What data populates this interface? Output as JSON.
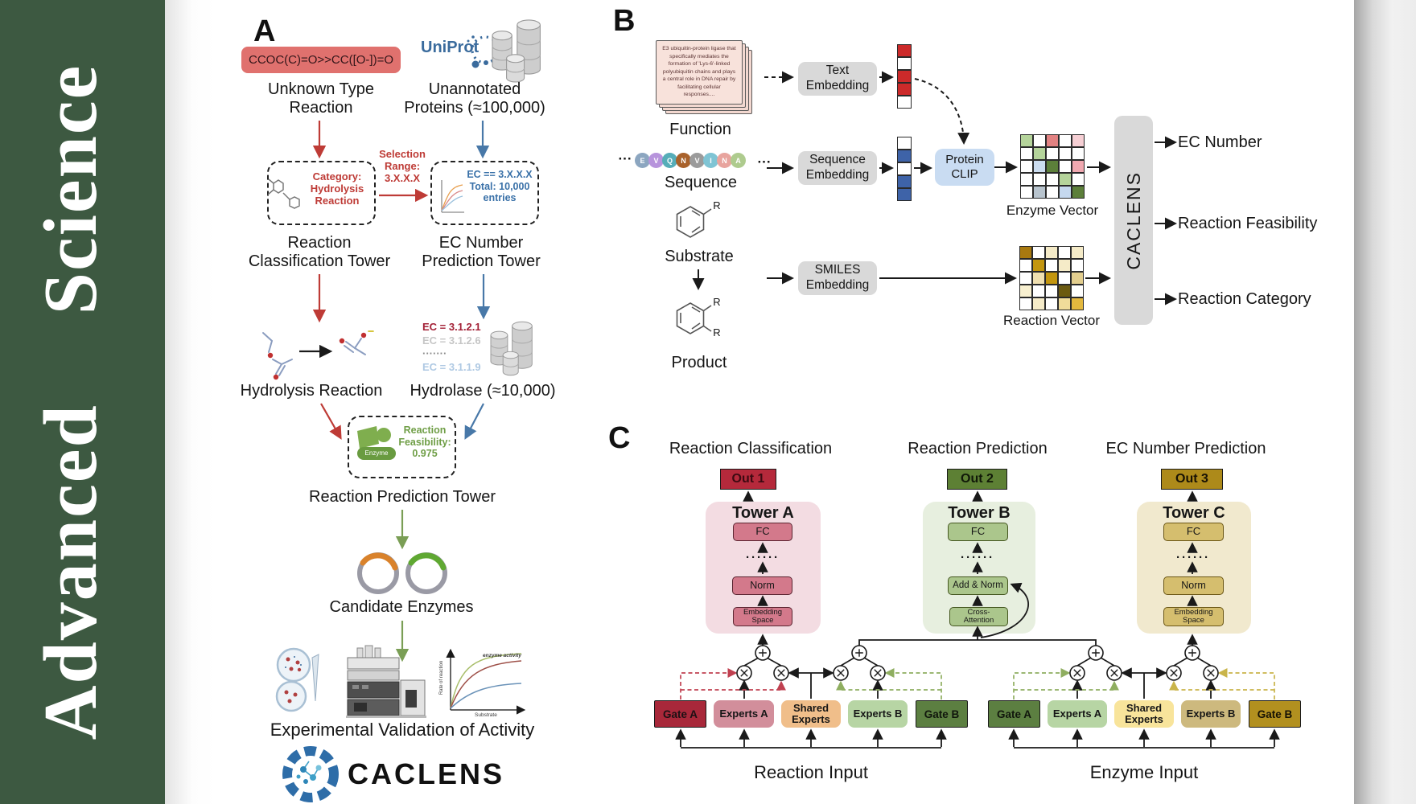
{
  "journal": {
    "title": "Advanced  Science"
  },
  "colors": {
    "sidebar_green": "#3D5941",
    "accent_red": "#BE3B36",
    "accent_blue": "#4878A8",
    "accent_green": "#7A9E55",
    "accent_gold": "#B2901F",
    "crimson": "#B5293B",
    "out_green": "#5D8034",
    "out_gold": "#AD8A1A",
    "uniprot_blue": "#3A6B9D"
  },
  "panelA": {
    "label": "A",
    "smiles": "CCOC(C)=O>>CC([O-])=O",
    "unknown_reaction": "Unknown Type\nReaction",
    "uniprot": "UniProt",
    "unannotated": "Unannotated\nProteins (≈100,000)",
    "selection": "Selection\nRange:\n3.X.X.X",
    "category": "Category:\nHydrolysis\nReaction",
    "ec_box": "EC == 3.X.X.X\nTotal: 10,000\nentries",
    "tower1": "Reaction\nClassification Tower",
    "tower2": "EC Number\nPrediction Tower",
    "hydrolysis": "Hydrolysis Reaction",
    "ec_list": [
      {
        "text": "EC = 3.1.2.1",
        "color": "#A32036"
      },
      {
        "text": "EC = 3.1.2.6",
        "color": "#C6C6C6"
      },
      {
        "text": "·······",
        "color": "#8A8A8A"
      },
      {
        "text": "EC = 3.1.1.9",
        "color": "#AFC9E3"
      }
    ],
    "hydrolase": "Hydrolase (≈10,000)",
    "enzyme_label": "Enzyme",
    "feasibility": "Reaction\nFeasibility:\n0.975",
    "tower3": "Reaction Prediction Tower",
    "candidates": "Candidate Enzymes",
    "validation": "Experimental Validation of Activity",
    "logo_text": "CACLENS",
    "graph": {
      "curve_label": "enzyme activity",
      "ylabel": "Rate of reaction",
      "xlabel": "Substrate"
    }
  },
  "panelB": {
    "label": "B",
    "function_card": "E3 ubiquitin-protein ligase that specifically mediates the formation of 'Lys-6'-linked polyubiquitin chains and plays a central role in DNA repair by facilitating cellular responses....",
    "function_label": "Function",
    "dots": "···",
    "residues": [
      {
        "t": "E",
        "c": "#8CA6C0"
      },
      {
        "t": "V",
        "c": "#B794DC"
      },
      {
        "t": "Q",
        "c": "#56ADB8"
      },
      {
        "t": "N",
        "c": "#A9622B"
      },
      {
        "t": "V",
        "c": "#9B9B9B"
      },
      {
        "t": "I",
        "c": "#7FC4D4"
      },
      {
        "t": "N",
        "c": "#E8A49E"
      },
      {
        "t": "A",
        "c": "#AECB8E"
      }
    ],
    "sequence_label": "Sequence",
    "substrate_label": "Substrate",
    "product_label": "Product",
    "r_label": "R",
    "text_embedding": "Text\nEmbedding",
    "sequence_embedding": "Sequence\nEmbedding",
    "smiles_embedding": "SMILES\nEmbedding",
    "protein_clip": "Protein\nCLIP",
    "text_vector": [
      "#CC2A2A",
      "#FFFFFF",
      "#CC2A2A",
      "#CC2A2A",
      "#FFFFFF"
    ],
    "sequence_vector": [
      "#FFFFFF",
      "#3E63A8",
      "#FFFFFF",
      "#3E63A8",
      "#3E63A8"
    ],
    "enzyme_grid": [
      [
        "#B5D49B",
        "#FFFFFF",
        "#E28282",
        "#FFFFFF",
        "#F6CFD4"
      ],
      [
        "#FFFFFF",
        "#B5D49B",
        "#FFFFFF",
        "#FFFFFF",
        "#FFFFFF"
      ],
      [
        "#FFFFFF",
        "#CCDDF0",
        "#5C7F3A",
        "#FFFFFF",
        "#F0A8B0"
      ],
      [
        "#FFFFFF",
        "#FFFFFF",
        "#FFFFFF",
        "#B5D49B",
        "#FFFFFF"
      ],
      [
        "#FFFFFF",
        "#B8C4CE",
        "#FFFFFF",
        "#C5D8EE",
        "#5C7F3A"
      ]
    ],
    "reaction_grid": [
      [
        "#A8790F",
        "#FFFFFF",
        "#F5EBC8",
        "#FFFFFF",
        "#F5EBC8"
      ],
      [
        "#FFFFFF",
        "#C3960F",
        "#FFFFFF",
        "#F5EBC8",
        "#FFFFFF"
      ],
      [
        "#FFFFFF",
        "#F0E0B0",
        "#C3960F",
        "#FFFFFF",
        "#E3CE8E"
      ],
      [
        "#F8F0D0",
        "#FFFFFF",
        "#FFFFFF",
        "#6B5A10",
        "#FFFFFF"
      ],
      [
        "#FFFFFF",
        "#F5EBC8",
        "#FFFFFF",
        "#F0DC9A",
        "#E3B83E"
      ]
    ],
    "enzyme_vector_label": "Enzyme Vector",
    "reaction_vector_label": "Reaction Vector",
    "caclens": "CACLENS",
    "outputs": [
      "EC Number",
      "Reaction Feasibility",
      "Reaction Category"
    ]
  },
  "panelC": {
    "label": "C",
    "headers": [
      "Reaction Classification",
      "Reaction Prediction",
      "EC Number Prediction"
    ],
    "outs": [
      {
        "text": "Out 1",
        "bg": "#B5293B",
        "fg": "#3D0A12"
      },
      {
        "text": "Out 2",
        "bg": "#5D8034",
        "fg": "#101808"
      },
      {
        "text": "Out 3",
        "bg": "#AD8A1A",
        "fg": "#181204"
      }
    ],
    "towerA": {
      "title": "Tower A",
      "fc": "FC",
      "dots": "······",
      "norm": "Norm",
      "embed": "Embedding\nSpace"
    },
    "towerB": {
      "title": "Tower B",
      "fc": "FC",
      "dots": "······",
      "addnorm": "Add & Norm",
      "cross": "Cross-\nAttention"
    },
    "towerC": {
      "title": "Tower C",
      "fc": "FC",
      "dots": "······",
      "norm": "Norm",
      "embed": "Embedding\nSpace"
    },
    "groups": [
      {
        "input_label": "Reaction Input",
        "boxes": [
          {
            "label": "Gate A",
            "bg": "#A8283A",
            "fg": "#1c1014"
          },
          {
            "label": "Experts A",
            "bg": "#D28E9B",
            "fg": "#161616"
          },
          {
            "label": "Shared\nExperts",
            "bg": "#F0BE8A",
            "fg": "#161616"
          },
          {
            "label": "Experts B",
            "bg": "#B7D5A4",
            "fg": "#161616"
          },
          {
            "label": "Gate B",
            "bg": "#5C7F41",
            "fg": "#10160c"
          }
        ]
      },
      {
        "input_label": "Enzyme Input",
        "boxes": [
          {
            "label": "Gate A",
            "bg": "#5C7F41",
            "fg": "#10160c"
          },
          {
            "label": "Experts A",
            "bg": "#B7D5A4",
            "fg": "#161616"
          },
          {
            "label": "Shared\nExperts",
            "bg": "#F8E49B",
            "fg": "#161616"
          },
          {
            "label": "Experts B",
            "bg": "#CDB97E",
            "fg": "#161616"
          },
          {
            "label": "Gate B",
            "bg": "#B2901F",
            "fg": "#161204"
          }
        ]
      }
    ]
  }
}
